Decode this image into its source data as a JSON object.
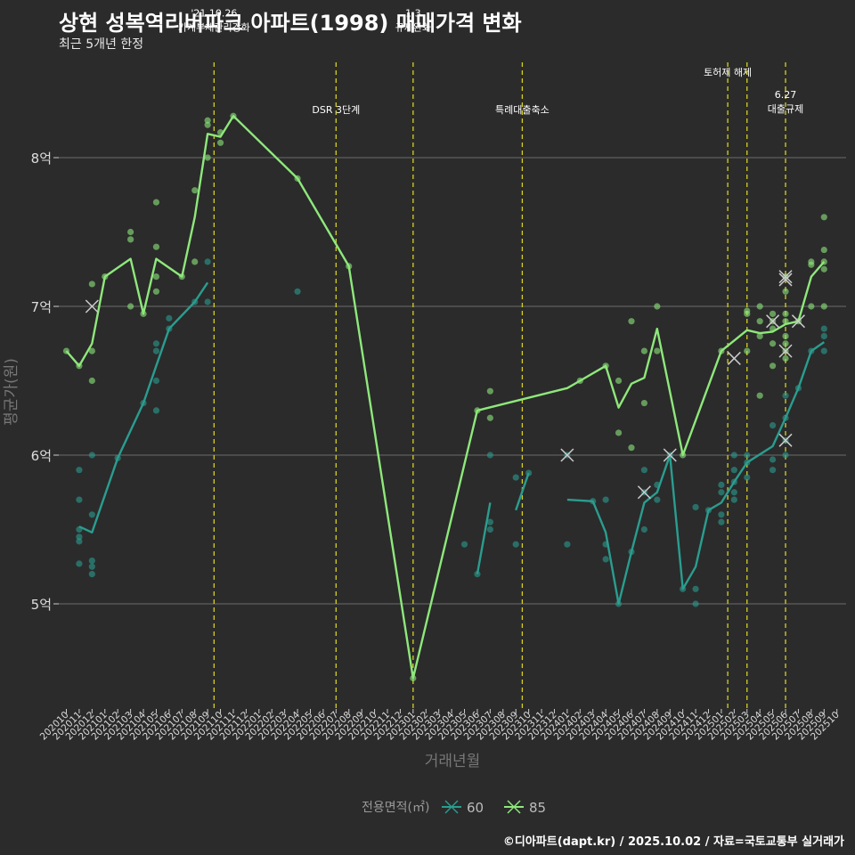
{
  "title": "상현 성복역리버파크 아파트(1998) 매매가격 변화",
  "subtitle": "최근 5개년 한정",
  "credit": "©디아파트(dapt.kr) / 2025.10.02 / 자료=국토교통부 실거래가",
  "chart_data": {
    "type": "line",
    "xlabel": "거래년월",
    "ylabel": "평균가(원)",
    "legend_title": "전용면적(㎡)",
    "legend_position": "bottom",
    "months": [
      "202010",
      "202011",
      "202012",
      "202101",
      "202102",
      "202103",
      "202104",
      "202105",
      "202106",
      "202107",
      "202108",
      "202109",
      "202110",
      "202111",
      "202112",
      "202201",
      "202202",
      "202203",
      "202204",
      "202205",
      "202206",
      "202207",
      "202208",
      "202209",
      "202210",
      "202211",
      "202212",
      "202301",
      "202302",
      "202303",
      "202304",
      "202305",
      "202306",
      "202307",
      "202308",
      "202309",
      "202310",
      "202311",
      "202312",
      "202401",
      "202402",
      "202403",
      "202404",
      "202405",
      "202406",
      "202407",
      "202408",
      "202409",
      "202410",
      "202411",
      "202412",
      "202501",
      "202502",
      "202503",
      "202504",
      "202505",
      "202506",
      "202507",
      "202508",
      "202509",
      "202510"
    ],
    "y_ticks": [
      {
        "value": 5.0,
        "label": "5억"
      },
      {
        "value": 6.0,
        "label": "6억"
      },
      {
        "value": 7.0,
        "label": "7억"
      },
      {
        "value": 8.0,
        "label": "8억"
      }
    ],
    "ylim": [
      4.3,
      8.8
    ],
    "y_unit": "억원",
    "colors": {
      "60": "#2a9d8f",
      "85": "#8ee87b",
      "event": "#d7d11f",
      "grid": "#6b6b6b"
    },
    "series": [
      {
        "name": "60",
        "avg_segments": [
          [
            [
              "202011",
              5.52
            ],
            [
              "202012",
              5.48
            ],
            [
              "202102",
              5.98
            ],
            [
              "202104",
              6.35
            ],
            [
              "202105",
              6.6
            ],
            [
              "202106",
              6.85
            ],
            [
              "202108",
              7.03
            ],
            [
              "202109",
              7.16
            ]
          ],
          [
            [
              "202306",
              5.2
            ],
            [
              "202307",
              5.68
            ]
          ],
          [
            [
              "202309",
              5.63
            ],
            [
              "202310",
              5.88
            ]
          ],
          [
            [
              "202401",
              5.7
            ],
            [
              "202403",
              5.69
            ],
            [
              "202404",
              5.48
            ],
            [
              "202405",
              5.0
            ],
            [
              "202406",
              5.35
            ],
            [
              "202407",
              5.68
            ],
            [
              "202408",
              5.75
            ],
            [
              "202409",
              6.0
            ],
            [
              "202410",
              5.1
            ],
            [
              "202411",
              5.25
            ],
            [
              "202412",
              5.63
            ],
            [
              "202501",
              5.68
            ],
            [
              "202502",
              5.82
            ],
            [
              "202503",
              5.95
            ],
            [
              "202505",
              6.06
            ],
            [
              "202506",
              6.25
            ],
            [
              "202507",
              6.45
            ],
            [
              "202508",
              6.7
            ],
            [
              "202509",
              6.76
            ]
          ]
        ],
        "trades": [
          [
            "202011",
            5.9
          ],
          [
            "202011",
            5.7
          ],
          [
            "202011",
            5.5
          ],
          [
            "202011",
            5.45
          ],
          [
            "202011",
            5.42
          ],
          [
            "202011",
            5.27
          ],
          [
            "202012",
            6.0
          ],
          [
            "202012",
            5.6
          ],
          [
            "202012",
            5.29
          ],
          [
            "202012",
            5.25
          ],
          [
            "202012",
            5.2
          ],
          [
            "202102",
            5.98
          ],
          [
            "202104",
            6.35
          ],
          [
            "202105",
            6.75
          ],
          [
            "202105",
            6.7
          ],
          [
            "202105",
            6.5
          ],
          [
            "202105",
            6.3
          ],
          [
            "202106",
            6.92
          ],
          [
            "202106",
            6.85
          ],
          [
            "202108",
            7.03
          ],
          [
            "202109",
            7.3
          ],
          [
            "202109",
            7.03
          ],
          [
            "202204",
            7.1
          ],
          [
            "202305",
            5.4
          ],
          [
            "202306",
            5.2
          ],
          [
            "202307",
            6.0
          ],
          [
            "202307",
            5.55
          ],
          [
            "202307",
            5.5
          ],
          [
            "202309",
            5.85
          ],
          [
            "202309",
            5.4
          ],
          [
            "202310",
            5.88
          ],
          [
            "202401",
            6.0
          ],
          [
            "202401",
            5.4
          ],
          [
            "202403",
            5.69
          ],
          [
            "202404",
            5.7
          ],
          [
            "202404",
            5.4
          ],
          [
            "202404",
            5.3
          ],
          [
            "202405",
            5.0
          ],
          [
            "202406",
            5.35
          ],
          [
            "202407",
            5.9
          ],
          [
            "202407",
            5.75
          ],
          [
            "202407",
            5.5
          ],
          [
            "202408",
            5.8
          ],
          [
            "202408",
            5.7
          ],
          [
            "202409",
            6.0
          ],
          [
            "202410",
            5.1
          ],
          [
            "202411",
            5.65
          ],
          [
            "202411",
            5.1
          ],
          [
            "202411",
            5.0
          ],
          [
            "202412",
            5.63
          ],
          [
            "202501",
            5.8
          ],
          [
            "202501",
            5.75
          ],
          [
            "202501",
            5.6
          ],
          [
            "202501",
            5.55
          ],
          [
            "202502",
            6.0
          ],
          [
            "202502",
            5.9
          ],
          [
            "202502",
            5.82
          ],
          [
            "202502",
            5.75
          ],
          [
            "202502",
            5.7
          ],
          [
            "202503",
            6.0
          ],
          [
            "202503",
            5.95
          ],
          [
            "202503",
            5.85
          ],
          [
            "202505",
            6.2
          ],
          [
            "202505",
            5.97
          ],
          [
            "202505",
            5.9
          ],
          [
            "202506",
            6.4
          ],
          [
            "202506",
            6.25
          ],
          [
            "202506",
            6.1
          ],
          [
            "202506",
            6.0
          ],
          [
            "202507",
            6.45
          ],
          [
            "202508",
            6.7
          ],
          [
            "202509",
            6.85
          ],
          [
            "202509",
            6.8
          ],
          [
            "202509",
            6.7
          ]
        ],
        "cancelled": [
          [
            "202401",
            6.0
          ],
          [
            "202407",
            5.75
          ],
          [
            "202409",
            6.0
          ],
          [
            "202506",
            6.1
          ]
        ]
      },
      {
        "name": "85",
        "avg_segments": [
          [
            [
              "202010",
              6.7
            ],
            [
              "202011",
              6.6
            ],
            [
              "202012",
              6.75
            ],
            [
              "202101",
              7.2
            ],
            [
              "202103",
              7.32
            ],
            [
              "202104",
              6.95
            ],
            [
              "202105",
              7.32
            ],
            [
              "202107",
              7.2
            ],
            [
              "202108",
              7.6
            ],
            [
              "202109",
              8.16
            ],
            [
              "202110",
              8.14
            ],
            [
              "202111",
              8.28
            ],
            [
              "202204",
              7.86
            ],
            [
              "202208",
              7.27
            ],
            [
              "202301",
              4.5
            ],
            [
              "202306",
              6.3
            ],
            [
              "202401",
              6.45
            ],
            [
              "202402",
              6.5
            ],
            [
              "202404",
              6.6
            ],
            [
              "202405",
              6.32
            ],
            [
              "202406",
              6.48
            ],
            [
              "202407",
              6.52
            ],
            [
              "202408",
              6.85
            ],
            [
              "202410",
              6.0
            ],
            [
              "202501",
              6.7
            ],
            [
              "202503",
              6.84
            ],
            [
              "202504",
              6.82
            ],
            [
              "202505",
              6.83
            ],
            [
              "202506",
              6.88
            ],
            [
              "202507",
              6.9
            ],
            [
              "202508",
              7.2
            ],
            [
              "202509",
              7.3
            ]
          ]
        ],
        "trades": [
          [
            "202010",
            6.7
          ],
          [
            "202011",
            6.6
          ],
          [
            "202012",
            7.15
          ],
          [
            "202012",
            6.7
          ],
          [
            "202012",
            6.5
          ],
          [
            "202101",
            7.2
          ],
          [
            "202103",
            7.5
          ],
          [
            "202103",
            7.45
          ],
          [
            "202103",
            7.0
          ],
          [
            "202104",
            6.95
          ],
          [
            "202105",
            7.7
          ],
          [
            "202105",
            7.4
          ],
          [
            "202105",
            7.2
          ],
          [
            "202105",
            7.1
          ],
          [
            "202107",
            7.2
          ],
          [
            "202108",
            7.78
          ],
          [
            "202108",
            7.3
          ],
          [
            "202109",
            8.25
          ],
          [
            "202109",
            8.22
          ],
          [
            "202109",
            8.0
          ],
          [
            "202110",
            8.17
          ],
          [
            "202110",
            8.1
          ],
          [
            "202111",
            8.28
          ],
          [
            "202204",
            7.86
          ],
          [
            "202208",
            7.27
          ],
          [
            "202301",
            4.5
          ],
          [
            "202306",
            6.3
          ],
          [
            "202307",
            6.43
          ],
          [
            "202307",
            6.25
          ],
          [
            "202402",
            6.5
          ],
          [
            "202404",
            6.6
          ],
          [
            "202405",
            6.5
          ],
          [
            "202405",
            6.15
          ],
          [
            "202406",
            6.9
          ],
          [
            "202406",
            6.05
          ],
          [
            "202407",
            6.7
          ],
          [
            "202407",
            6.35
          ],
          [
            "202408",
            7.0
          ],
          [
            "202408",
            6.7
          ],
          [
            "202410",
            6.0
          ],
          [
            "202501",
            6.7
          ],
          [
            "202503",
            6.97
          ],
          [
            "202503",
            6.95
          ],
          [
            "202503",
            6.7
          ],
          [
            "202504",
            7.0
          ],
          [
            "202504",
            6.9
          ],
          [
            "202504",
            6.8
          ],
          [
            "202504",
            6.4
          ],
          [
            "202505",
            6.95
          ],
          [
            "202505",
            6.9
          ],
          [
            "202505",
            6.85
          ],
          [
            "202505",
            6.75
          ],
          [
            "202505",
            6.6
          ],
          [
            "202506",
            7.2
          ],
          [
            "202506",
            7.1
          ],
          [
            "202506",
            6.95
          ],
          [
            "202506",
            6.9
          ],
          [
            "202506",
            6.8
          ],
          [
            "202506",
            6.75
          ],
          [
            "202506",
            6.7
          ],
          [
            "202506",
            6.65
          ],
          [
            "202507",
            6.9
          ],
          [
            "202508",
            7.3
          ],
          [
            "202508",
            7.28
          ],
          [
            "202508",
            7.0
          ],
          [
            "202509",
            7.6
          ],
          [
            "202509",
            7.38
          ],
          [
            "202509",
            7.3
          ],
          [
            "202509",
            7.25
          ],
          [
            "202509",
            7.0
          ]
        ],
        "cancelled": [
          [
            "202012",
            7.0
          ],
          [
            "202502",
            6.65
          ],
          [
            "202505",
            6.9
          ],
          [
            "202506",
            7.2
          ],
          [
            "202506",
            7.18
          ],
          [
            "202506",
            6.7
          ],
          [
            "202507",
            6.9
          ]
        ]
      }
    ],
    "events": [
      {
        "month": "202109",
        "offset": 0.5,
        "label_lines": [
          "'21.10.26",
          "가계부채관리강화"
        ],
        "label_y": 8.95
      },
      {
        "month": "202207",
        "offset": 0.0,
        "label_lines": [
          "DSR 3단계"
        ],
        "label_y": 8.3
      },
      {
        "month": "202301",
        "offset": 0.0,
        "label_lines": [
          "1.3",
          "규제완화"
        ],
        "label_y": 8.95
      },
      {
        "month": "202310",
        "offset": -0.5,
        "label_lines": [
          "특례대출축소"
        ],
        "label_y": 8.3
      },
      {
        "month": "202502",
        "offset": -0.5,
        "label_lines": [
          "토허제 해제"
        ],
        "label_y": 8.55
      },
      {
        "month": "202503",
        "offset": 0.0,
        "label_lines": [],
        "label_y": 8.55
      },
      {
        "month": "202506",
        "offset": 0.0,
        "label_lines": [
          "6.27",
          "대출규제"
        ],
        "label_y": 8.4
      }
    ]
  }
}
